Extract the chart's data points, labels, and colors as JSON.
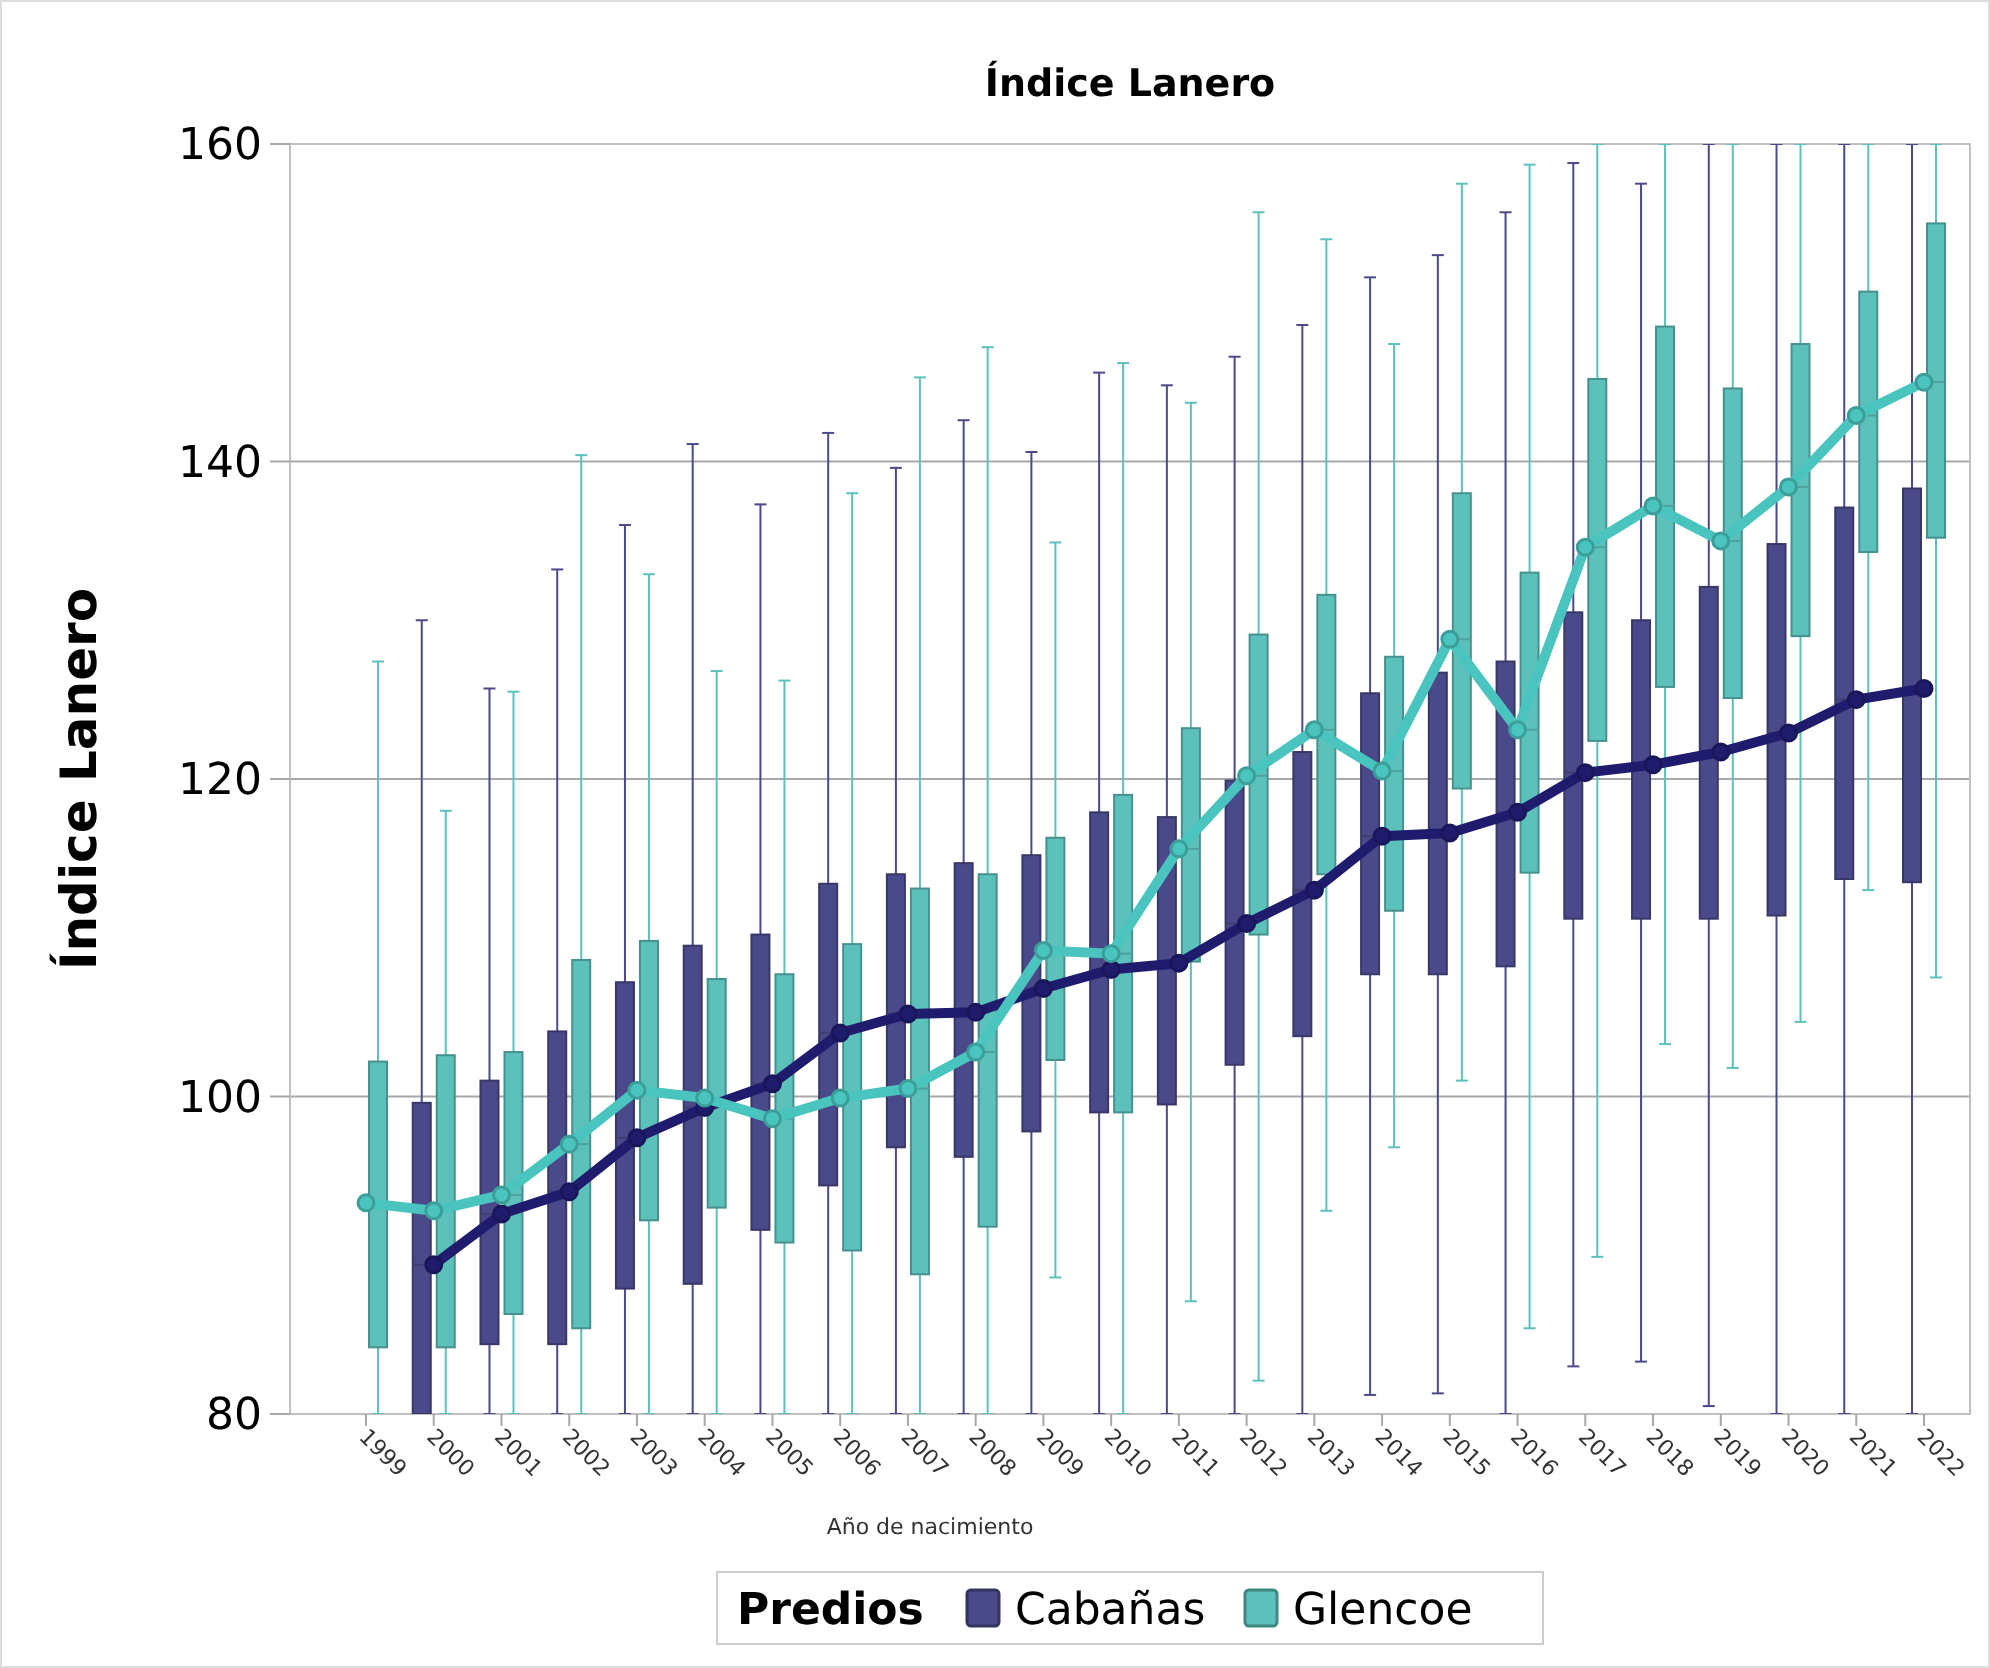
{
  "chart_data": {
    "type": "box",
    "title": "Índice Lanero",
    "xlabel": "Año de nacimiento",
    "ylabel": "Índice Lanero",
    "legend_title": "Predios",
    "legend": "bottom",
    "grid": "y",
    "marker": "circle",
    "categories": [
      "1999",
      "2000",
      "2001",
      "2002",
      "2003",
      "2004",
      "2005",
      "2006",
      "2007",
      "2008",
      "2009",
      "2010",
      "2011",
      "2012",
      "2013",
      "2014",
      "2015",
      "2016",
      "2017",
      "2018",
      "2019",
      "2020",
      "2021",
      "2022"
    ],
    "ylim": [
      80,
      160
    ],
    "yticks": [
      80,
      100,
      120,
      140,
      160
    ],
    "series": [
      {
        "name": "Cabañas",
        "color": "#4a4a8a",
        "boxes": [
          null,
          {
            "low": 80,
            "q1": 80,
            "median": 89.4,
            "q3": 99.6,
            "high": 130
          },
          {
            "low": 80,
            "q1": 84.4,
            "median": 92.6,
            "q3": 101,
            "high": 125.7
          },
          {
            "low": 80,
            "q1": 84.4,
            "median": 94,
            "q3": 104.1,
            "high": 133.2
          },
          {
            "low": 80,
            "q1": 87.9,
            "median": 97.4,
            "q3": 107.2,
            "high": 136
          },
          {
            "low": 80,
            "q1": 88.2,
            "median": 99.3,
            "q3": 109.5,
            "high": 141.1
          },
          {
            "low": 80,
            "q1": 91.6,
            "median": 100.8,
            "q3": 110.2,
            "high": 137.3
          },
          {
            "low": 80,
            "q1": 94.4,
            "median": 104,
            "q3": 113.4,
            "high": 141.8
          },
          {
            "low": 80,
            "q1": 96.8,
            "median": 105.2,
            "q3": 114,
            "high": 139.6
          },
          {
            "low": 80,
            "q1": 96.2,
            "median": 105.3,
            "q3": 114.7,
            "high": 142.6
          },
          {
            "low": 80,
            "q1": 97.8,
            "median": 106.8,
            "q3": 115.2,
            "high": 140.6
          },
          {
            "low": 80,
            "q1": 99,
            "median": 108,
            "q3": 117.9,
            "high": 145.6
          },
          {
            "low": 80,
            "q1": 99.5,
            "median": 108.4,
            "q3": 117.6,
            "high": 144.8
          },
          {
            "low": 80,
            "q1": 102,
            "median": 110.9,
            "q3": 119.9,
            "high": 146.6
          },
          {
            "low": 80,
            "q1": 103.8,
            "median": 113,
            "q3": 121.7,
            "high": 148.6
          },
          {
            "low": 81.2,
            "q1": 107.7,
            "median": 116.4,
            "q3": 125.4,
            "high": 151.6
          },
          {
            "low": 81.3,
            "q1": 107.7,
            "median": 116.6,
            "q3": 126.7,
            "high": 153
          },
          {
            "low": 80,
            "q1": 108.2,
            "median": 117.9,
            "q3": 127.4,
            "high": 155.7
          },
          {
            "low": 83,
            "q1": 111.2,
            "median": 120.4,
            "q3": 130.5,
            "high": 158.8
          },
          {
            "low": 83.3,
            "q1": 111.2,
            "median": 120.9,
            "q3": 130,
            "high": 157.5
          },
          {
            "low": 80.5,
            "q1": 111.2,
            "median": 121.7,
            "q3": 132.1,
            "high": 160
          },
          {
            "low": 80,
            "q1": 111.4,
            "median": 122.9,
            "q3": 134.8,
            "high": 160
          },
          {
            "low": 80,
            "q1": 113.7,
            "median": 125,
            "q3": 137.1,
            "high": 160
          },
          {
            "low": 80,
            "q1": 113.5,
            "median": 125.7,
            "q3": 138.3,
            "high": 160
          }
        ]
      },
      {
        "name": "Glencoe",
        "color": "#5dc1bb",
        "boxes": [
          {
            "low": 80,
            "q1": 84.2,
            "median": 93.3,
            "q3": 102.2,
            "high": 127.4
          },
          {
            "low": 80,
            "q1": 84.2,
            "median": 92.8,
            "q3": 102.6,
            "high": 118
          },
          {
            "low": 80,
            "q1": 86.3,
            "median": 93.8,
            "q3": 102.8,
            "high": 125.5
          },
          {
            "low": 80,
            "q1": 85.4,
            "median": 97,
            "q3": 108.6,
            "high": 140.4
          },
          {
            "low": 80,
            "q1": 92.2,
            "median": 100.4,
            "q3": 109.8,
            "high": 132.9
          },
          {
            "low": 80,
            "q1": 93,
            "median": 99.9,
            "q3": 107.4,
            "high": 126.8
          },
          {
            "low": 80,
            "q1": 90.8,
            "median": 98.6,
            "q3": 107.7,
            "high": 126.2
          },
          {
            "low": 80,
            "q1": 90.3,
            "median": 99.9,
            "q3": 109.6,
            "high": 138
          },
          {
            "low": 80,
            "q1": 88.8,
            "median": 100.5,
            "q3": 113.1,
            "high": 145.3
          },
          {
            "low": 80,
            "q1": 91.8,
            "median": 102.8,
            "q3": 114,
            "high": 147.2
          },
          {
            "low": 88.6,
            "q1": 102.3,
            "median": 109.2,
            "q3": 116.3,
            "high": 134.9
          },
          {
            "low": 80,
            "q1": 99,
            "median": 109,
            "q3": 119,
            "high": 146.2
          },
          {
            "low": 87.1,
            "q1": 108.5,
            "median": 115.6,
            "q3": 123.2,
            "high": 143.7
          },
          {
            "low": 82.1,
            "q1": 110.2,
            "median": 120.2,
            "q3": 129.1,
            "high": 155.7
          },
          {
            "low": 92.8,
            "q1": 114,
            "median": 123.1,
            "q3": 131.6,
            "high": 154
          },
          {
            "low": 96.8,
            "q1": 111.7,
            "median": 120.5,
            "q3": 127.7,
            "high": 147.4
          },
          {
            "low": 101,
            "q1": 119.4,
            "median": 128.8,
            "q3": 138,
            "high": 157.5
          },
          {
            "low": 85.4,
            "q1": 114.1,
            "median": 123.1,
            "q3": 133,
            "high": 158.7
          },
          {
            "low": 89.9,
            "q1": 122.4,
            "median": 134.6,
            "q3": 145.2,
            "high": 160
          },
          {
            "low": 103.3,
            "q1": 125.8,
            "median": 137.2,
            "q3": 148.5,
            "high": 160
          },
          {
            "low": 101.8,
            "q1": 125.1,
            "median": 135,
            "q3": 144.6,
            "high": 160
          },
          {
            "low": 104.7,
            "q1": 129,
            "median": 138.4,
            "q3": 147.4,
            "high": 160
          },
          {
            "low": 113,
            "q1": 134.3,
            "median": 142.9,
            "q3": 150.7,
            "high": 160
          },
          {
            "low": 107.5,
            "q1": 135.2,
            "median": 145,
            "q3": 155,
            "high": 160
          }
        ]
      },
      {
        "type": "line",
        "color": "#1f1c6e",
        "values": [
          null,
          89.4,
          92.6,
          94,
          97.4,
          99.3,
          100.8,
          104,
          105.2,
          105.3,
          106.8,
          108,
          108.4,
          110.9,
          113,
          116.4,
          116.6,
          117.9,
          120.4,
          120.9,
          121.7,
          122.9,
          125,
          125.7
        ]
      },
      {
        "type": "line",
        "color": "#4ac4be",
        "values": [
          93.3,
          92.8,
          93.8,
          97,
          100.4,
          99.9,
          98.6,
          99.9,
          100.5,
          102.8,
          109.2,
          109,
          115.6,
          120.2,
          123.1,
          120.5,
          128.8,
          123.1,
          134.6,
          137.2,
          135,
          138.4,
          142.9,
          145
        ]
      }
    ]
  }
}
